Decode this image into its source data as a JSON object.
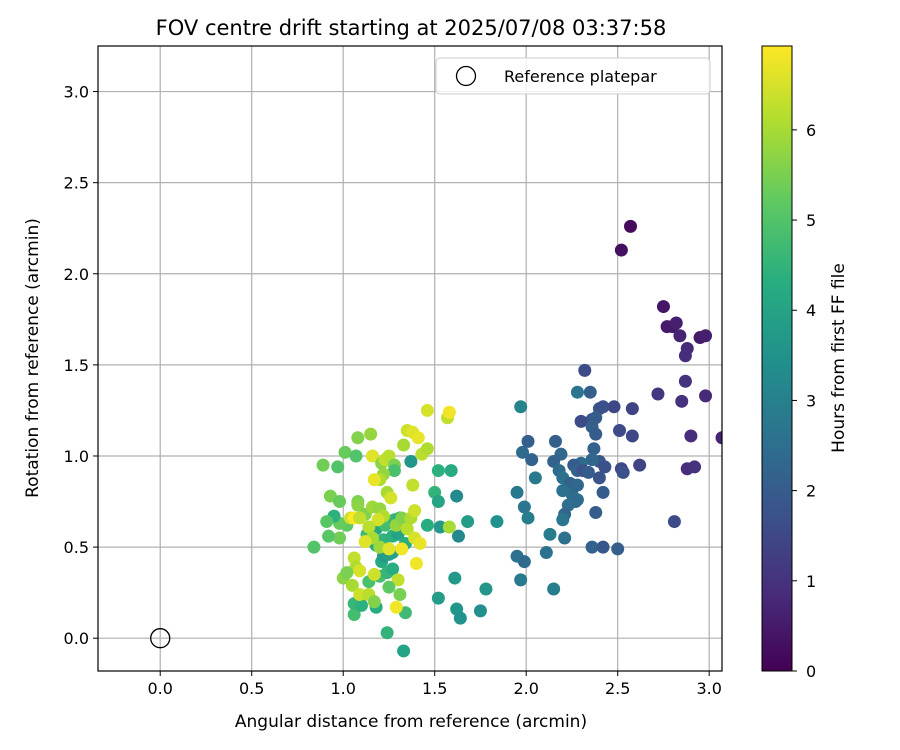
{
  "chart_data": {
    "type": "scatter",
    "title": "FOV centre drift starting at 2025/07/08 03:37:58",
    "xlabel": "Angular distance from reference (arcmin)",
    "ylabel": "Rotation from reference (arcmin)",
    "xlim": [
      -0.34,
      3.07
    ],
    "ylim": [
      -0.18,
      3.25
    ],
    "x_ticks": [
      "0.0",
      "0.5",
      "1.0",
      "1.5",
      "2.0",
      "2.5",
      "3.0"
    ],
    "y_ticks": [
      "0.0",
      "0.5",
      "1.0",
      "1.5",
      "2.0",
      "2.5",
      "3.0"
    ],
    "grid": true,
    "colormap": "viridis",
    "colorbar": {
      "label": "Hours from first FF file",
      "min": 0,
      "max": 6.93,
      "ticks": [
        "0",
        "1",
        "2",
        "3",
        "4",
        "5",
        "6"
      ]
    },
    "legend": {
      "position": "top-right",
      "entries": [
        {
          "label": "Reference platepar",
          "marker": "open-circle"
        }
      ]
    },
    "reference_point": {
      "x": 0.0,
      "y": 0.0
    },
    "points": [
      {
        "x": 2.57,
        "y": 2.26,
        "c": 0.2
      },
      {
        "x": 2.52,
        "y": 2.13,
        "c": 0.3
      },
      {
        "x": 2.75,
        "y": 1.82,
        "c": 0.4
      },
      {
        "x": 2.77,
        "y": 1.71,
        "c": 0.5
      },
      {
        "x": 2.8,
        "y": 1.71,
        "c": 0.5
      },
      {
        "x": 2.82,
        "y": 1.73,
        "c": 0.6
      },
      {
        "x": 2.84,
        "y": 1.66,
        "c": 0.7
      },
      {
        "x": 2.88,
        "y": 1.59,
        "c": 0.8
      },
      {
        "x": 2.87,
        "y": 1.55,
        "c": 0.9
      },
      {
        "x": 2.95,
        "y": 1.65,
        "c": 0.5
      },
      {
        "x": 2.98,
        "y": 1.66,
        "c": 0.6
      },
      {
        "x": 2.87,
        "y": 1.41,
        "c": 1.0
      },
      {
        "x": 2.98,
        "y": 1.33,
        "c": 0.8
      },
      {
        "x": 2.85,
        "y": 1.3,
        "c": 1.0
      },
      {
        "x": 2.72,
        "y": 1.34,
        "c": 1.1
      },
      {
        "x": 3.07,
        "y": 1.1,
        "c": 0.7
      },
      {
        "x": 2.9,
        "y": 1.11,
        "c": 0.9
      },
      {
        "x": 2.88,
        "y": 0.93,
        "c": 0.9
      },
      {
        "x": 2.92,
        "y": 0.94,
        "c": 1.0
      },
      {
        "x": 2.81,
        "y": 0.64,
        "c": 1.6
      },
      {
        "x": 2.32,
        "y": 1.47,
        "c": 1.6
      },
      {
        "x": 2.28,
        "y": 1.35,
        "c": 2.7
      },
      {
        "x": 2.35,
        "y": 1.35,
        "c": 2.1
      },
      {
        "x": 2.4,
        "y": 1.26,
        "c": 1.8
      },
      {
        "x": 2.42,
        "y": 1.27,
        "c": 1.7
      },
      {
        "x": 2.48,
        "y": 1.27,
        "c": 1.5
      },
      {
        "x": 2.36,
        "y": 1.2,
        "c": 1.9
      },
      {
        "x": 2.3,
        "y": 1.19,
        "c": 1.6
      },
      {
        "x": 2.38,
        "y": 1.21,
        "c": 2.0
      },
      {
        "x": 2.58,
        "y": 1.26,
        "c": 1.4
      },
      {
        "x": 2.51,
        "y": 1.14,
        "c": 1.6
      },
      {
        "x": 2.58,
        "y": 1.11,
        "c": 1.5
      },
      {
        "x": 2.36,
        "y": 1.16,
        "c": 2.1
      },
      {
        "x": 2.38,
        "y": 1.12,
        "c": 2.0
      },
      {
        "x": 2.16,
        "y": 1.08,
        "c": 2.1
      },
      {
        "x": 2.37,
        "y": 1.04,
        "c": 2.2
      },
      {
        "x": 2.4,
        "y": 0.97,
        "c": 1.9
      },
      {
        "x": 2.43,
        "y": 0.94,
        "c": 1.7
      },
      {
        "x": 2.36,
        "y": 0.98,
        "c": 2.3
      },
      {
        "x": 2.3,
        "y": 0.96,
        "c": 2.4
      },
      {
        "x": 2.26,
        "y": 0.95,
        "c": 2.0
      },
      {
        "x": 2.28,
        "y": 0.92,
        "c": 2.2
      },
      {
        "x": 2.31,
        "y": 0.92,
        "c": 1.8
      },
      {
        "x": 2.34,
        "y": 0.91,
        "c": 2.0
      },
      {
        "x": 2.19,
        "y": 1.01,
        "c": 2.3
      },
      {
        "x": 2.15,
        "y": 0.97,
        "c": 2.2
      },
      {
        "x": 2.18,
        "y": 0.92,
        "c": 2.4
      },
      {
        "x": 2.2,
        "y": 0.88,
        "c": 2.6
      },
      {
        "x": 2.24,
        "y": 0.85,
        "c": 2.2
      },
      {
        "x": 2.25,
        "y": 0.79,
        "c": 2.4
      },
      {
        "x": 2.4,
        "y": 0.88,
        "c": 1.8
      },
      {
        "x": 2.52,
        "y": 0.93,
        "c": 1.5
      },
      {
        "x": 2.53,
        "y": 0.91,
        "c": 1.7
      },
      {
        "x": 2.62,
        "y": 0.95,
        "c": 1.4
      },
      {
        "x": 2.42,
        "y": 0.8,
        "c": 2.0
      },
      {
        "x": 2.28,
        "y": 0.84,
        "c": 2.3
      },
      {
        "x": 2.2,
        "y": 0.81,
        "c": 2.6
      },
      {
        "x": 2.01,
        "y": 1.08,
        "c": 2.1
      },
      {
        "x": 1.98,
        "y": 1.02,
        "c": 2.4
      },
      {
        "x": 2.03,
        "y": 0.98,
        "c": 2.2
      },
      {
        "x": 2.05,
        "y": 0.88,
        "c": 2.8
      },
      {
        "x": 1.97,
        "y": 1.27,
        "c": 3.1
      },
      {
        "x": 2.28,
        "y": 0.76,
        "c": 2.6
      },
      {
        "x": 2.27,
        "y": 0.75,
        "c": 2.4
      },
      {
        "x": 2.23,
        "y": 0.73,
        "c": 2.5
      },
      {
        "x": 2.21,
        "y": 0.68,
        "c": 2.3
      },
      {
        "x": 2.2,
        "y": 0.65,
        "c": 2.7
      },
      {
        "x": 2.38,
        "y": 0.69,
        "c": 2.0
      },
      {
        "x": 1.95,
        "y": 0.8,
        "c": 2.8
      },
      {
        "x": 1.99,
        "y": 0.72,
        "c": 2.7
      },
      {
        "x": 2.01,
        "y": 0.66,
        "c": 2.9
      },
      {
        "x": 2.13,
        "y": 0.57,
        "c": 2.9
      },
      {
        "x": 2.21,
        "y": 0.55,
        "c": 2.6
      },
      {
        "x": 2.36,
        "y": 0.5,
        "c": 2.2
      },
      {
        "x": 2.42,
        "y": 0.5,
        "c": 1.9
      },
      {
        "x": 2.5,
        "y": 0.49,
        "c": 2.1
      },
      {
        "x": 1.95,
        "y": 0.45,
        "c": 2.6
      },
      {
        "x": 1.99,
        "y": 0.42,
        "c": 2.4
      },
      {
        "x": 2.11,
        "y": 0.47,
        "c": 2.6
      },
      {
        "x": 1.97,
        "y": 0.32,
        "c": 2.8
      },
      {
        "x": 2.15,
        "y": 0.27,
        "c": 2.9
      },
      {
        "x": 1.84,
        "y": 0.64,
        "c": 3.5
      },
      {
        "x": 1.78,
        "y": 0.27,
        "c": 3.6
      },
      {
        "x": 1.75,
        "y": 0.15,
        "c": 3.4
      },
      {
        "x": 1.62,
        "y": 0.78,
        "c": 3.3
      },
      {
        "x": 1.68,
        "y": 0.64,
        "c": 3.8
      },
      {
        "x": 1.63,
        "y": 0.56,
        "c": 3.2
      },
      {
        "x": 1.61,
        "y": 0.33,
        "c": 3.7
      },
      {
        "x": 1.62,
        "y": 0.16,
        "c": 3.6
      },
      {
        "x": 1.64,
        "y": 0.11,
        "c": 3.5
      },
      {
        "x": 1.52,
        "y": 0.22,
        "c": 3.8
      },
      {
        "x": 1.53,
        "y": 0.61,
        "c": 3.7
      },
      {
        "x": 1.5,
        "y": 0.8,
        "c": 4.5
      },
      {
        "x": 1.52,
        "y": 0.75,
        "c": 4.0
      },
      {
        "x": 1.52,
        "y": 0.92,
        "c": 4.4
      },
      {
        "x": 1.59,
        "y": 0.92,
        "c": 4.2
      },
      {
        "x": 1.46,
        "y": 0.62,
        "c": 4.3
      },
      {
        "x": 1.37,
        "y": 0.97,
        "c": 3.6
      },
      {
        "x": 1.33,
        "y": -0.07,
        "c": 4.0
      },
      {
        "x": 1.34,
        "y": 0.14,
        "c": 4.7
      },
      {
        "x": 1.24,
        "y": 0.03,
        "c": 4.5
      },
      {
        "x": 1.18,
        "y": 0.17,
        "c": 4.3
      },
      {
        "x": 1.06,
        "y": 0.13,
        "c": 4.8
      },
      {
        "x": 1.06,
        "y": 0.19,
        "c": 4.6
      },
      {
        "x": 1.1,
        "y": 0.18,
        "c": 4.4
      },
      {
        "x": 1.14,
        "y": 0.31,
        "c": 4.9
      },
      {
        "x": 1.2,
        "y": 0.34,
        "c": 4.8
      },
      {
        "x": 1.24,
        "y": 0.36,
        "c": 4.6
      },
      {
        "x": 1.27,
        "y": 0.38,
        "c": 4.3
      },
      {
        "x": 1.21,
        "y": 0.42,
        "c": 4.2
      },
      {
        "x": 1.27,
        "y": 0.47,
        "c": 4.1
      },
      {
        "x": 1.22,
        "y": 0.45,
        "c": 3.8
      },
      {
        "x": 1.25,
        "y": 0.46,
        "c": 3.9
      },
      {
        "x": 1.18,
        "y": 0.51,
        "c": 4.2
      },
      {
        "x": 1.22,
        "y": 0.54,
        "c": 4.5
      },
      {
        "x": 1.27,
        "y": 0.56,
        "c": 4.4
      },
      {
        "x": 1.3,
        "y": 0.57,
        "c": 4.0
      },
      {
        "x": 1.34,
        "y": 0.52,
        "c": 4.3
      },
      {
        "x": 1.13,
        "y": 0.57,
        "c": 4.7
      },
      {
        "x": 1.18,
        "y": 0.6,
        "c": 4.1
      },
      {
        "x": 1.23,
        "y": 0.62,
        "c": 4.8
      },
      {
        "x": 1.28,
        "y": 0.65,
        "c": 4.6
      },
      {
        "x": 1.31,
        "y": 0.66,
        "c": 4.2
      },
      {
        "x": 1.02,
        "y": 0.62,
        "c": 5.2
      },
      {
        "x": 0.98,
        "y": 0.63,
        "c": 5.3
      },
      {
        "x": 0.95,
        "y": 0.67,
        "c": 4.4
      },
      {
        "x": 0.98,
        "y": 0.55,
        "c": 5.4
      },
      {
        "x": 0.92,
        "y": 0.56,
        "c": 5.1
      },
      {
        "x": 0.84,
        "y": 0.5,
        "c": 5.0
      },
      {
        "x": 0.91,
        "y": 0.64,
        "c": 5.1
      },
      {
        "x": 0.93,
        "y": 0.78,
        "c": 5.5
      },
      {
        "x": 0.98,
        "y": 0.75,
        "c": 5.3
      },
      {
        "x": 0.89,
        "y": 0.95,
        "c": 5.4
      },
      {
        "x": 0.97,
        "y": 0.94,
        "c": 5.0
      },
      {
        "x": 1.08,
        "y": 0.75,
        "c": 5.5
      },
      {
        "x": 1.08,
        "y": 0.73,
        "c": 5.7
      },
      {
        "x": 1.12,
        "y": 0.68,
        "c": 5.6
      },
      {
        "x": 1.16,
        "y": 0.72,
        "c": 5.9
      },
      {
        "x": 1.01,
        "y": 1.02,
        "c": 5.3
      },
      {
        "x": 1.07,
        "y": 1.0,
        "c": 5.0
      },
      {
        "x": 1.08,
        "y": 1.1,
        "c": 5.6
      },
      {
        "x": 1.15,
        "y": 1.12,
        "c": 5.8
      },
      {
        "x": 1.16,
        "y": 1.0,
        "c": 6.6
      },
      {
        "x": 1.21,
        "y": 0.96,
        "c": 5.7
      },
      {
        "x": 1.23,
        "y": 0.98,
        "c": 6.3
      },
      {
        "x": 1.25,
        "y": 1.0,
        "c": 6.2
      },
      {
        "x": 1.28,
        "y": 0.95,
        "c": 5.5
      },
      {
        "x": 1.28,
        "y": 0.92,
        "c": 4.9
      },
      {
        "x": 1.22,
        "y": 0.9,
        "c": 5.8
      },
      {
        "x": 1.2,
        "y": 0.87,
        "c": 6.1
      },
      {
        "x": 1.17,
        "y": 0.87,
        "c": 6.7
      },
      {
        "x": 1.24,
        "y": 0.8,
        "c": 6.0
      },
      {
        "x": 1.26,
        "y": 0.77,
        "c": 6.5
      },
      {
        "x": 1.2,
        "y": 0.71,
        "c": 5.8
      },
      {
        "x": 1.22,
        "y": 0.67,
        "c": 6.1
      },
      {
        "x": 1.19,
        "y": 0.65,
        "c": 6.5
      },
      {
        "x": 1.04,
        "y": 0.66,
        "c": 6.4
      },
      {
        "x": 1.06,
        "y": 0.66,
        "c": 6.9
      },
      {
        "x": 1.09,
        "y": 0.66,
        "c": 6.3
      },
      {
        "x": 1.14,
        "y": 0.61,
        "c": 6.2
      },
      {
        "x": 1.16,
        "y": 0.55,
        "c": 6.0
      },
      {
        "x": 1.12,
        "y": 0.53,
        "c": 6.6
      },
      {
        "x": 1.2,
        "y": 0.5,
        "c": 5.9
      },
      {
        "x": 1.25,
        "y": 0.49,
        "c": 6.6
      },
      {
        "x": 1.32,
        "y": 0.49,
        "c": 6.8
      },
      {
        "x": 1.29,
        "y": 0.62,
        "c": 5.8
      },
      {
        "x": 1.32,
        "y": 0.66,
        "c": 5.6
      },
      {
        "x": 1.35,
        "y": 0.6,
        "c": 6.2
      },
      {
        "x": 1.37,
        "y": 0.66,
        "c": 6.1
      },
      {
        "x": 1.39,
        "y": 0.7,
        "c": 6.4
      },
      {
        "x": 1.39,
        "y": 0.55,
        "c": 6.5
      },
      {
        "x": 1.42,
        "y": 0.52,
        "c": 6.7
      },
      {
        "x": 1.4,
        "y": 0.41,
        "c": 6.8
      },
      {
        "x": 1.38,
        "y": 0.84,
        "c": 6.3
      },
      {
        "x": 1.33,
        "y": 1.06,
        "c": 6.0
      },
      {
        "x": 1.35,
        "y": 1.14,
        "c": 6.4
      },
      {
        "x": 1.38,
        "y": 1.13,
        "c": 6.6
      },
      {
        "x": 1.41,
        "y": 1.1,
        "c": 6.7
      },
      {
        "x": 1.43,
        "y": 1.01,
        "c": 6.2
      },
      {
        "x": 1.46,
        "y": 1.04,
        "c": 6.1
      },
      {
        "x": 1.46,
        "y": 1.25,
        "c": 6.5
      },
      {
        "x": 1.57,
        "y": 1.21,
        "c": 6.3
      },
      {
        "x": 1.58,
        "y": 1.24,
        "c": 6.8
      },
      {
        "x": 1.58,
        "y": 0.61,
        "c": 6.0
      },
      {
        "x": 1.06,
        "y": 0.44,
        "c": 6.3
      },
      {
        "x": 1.07,
        "y": 0.39,
        "c": 6.1
      },
      {
        "x": 1.09,
        "y": 0.37,
        "c": 6.5
      },
      {
        "x": 1.17,
        "y": 0.35,
        "c": 6.4
      },
      {
        "x": 1.0,
        "y": 0.33,
        "c": 5.7
      },
      {
        "x": 1.02,
        "y": 0.36,
        "c": 5.5
      },
      {
        "x": 1.05,
        "y": 0.29,
        "c": 6.0
      },
      {
        "x": 1.09,
        "y": 0.24,
        "c": 6.4
      },
      {
        "x": 1.14,
        "y": 0.24,
        "c": 6.2
      },
      {
        "x": 1.17,
        "y": 0.2,
        "c": 5.6
      },
      {
        "x": 1.31,
        "y": 0.24,
        "c": 5.5
      },
      {
        "x": 1.3,
        "y": 0.32,
        "c": 6.3
      },
      {
        "x": 1.25,
        "y": 0.28,
        "c": 5.2
      },
      {
        "x": 1.29,
        "y": 0.17,
        "c": 6.8
      }
    ]
  }
}
